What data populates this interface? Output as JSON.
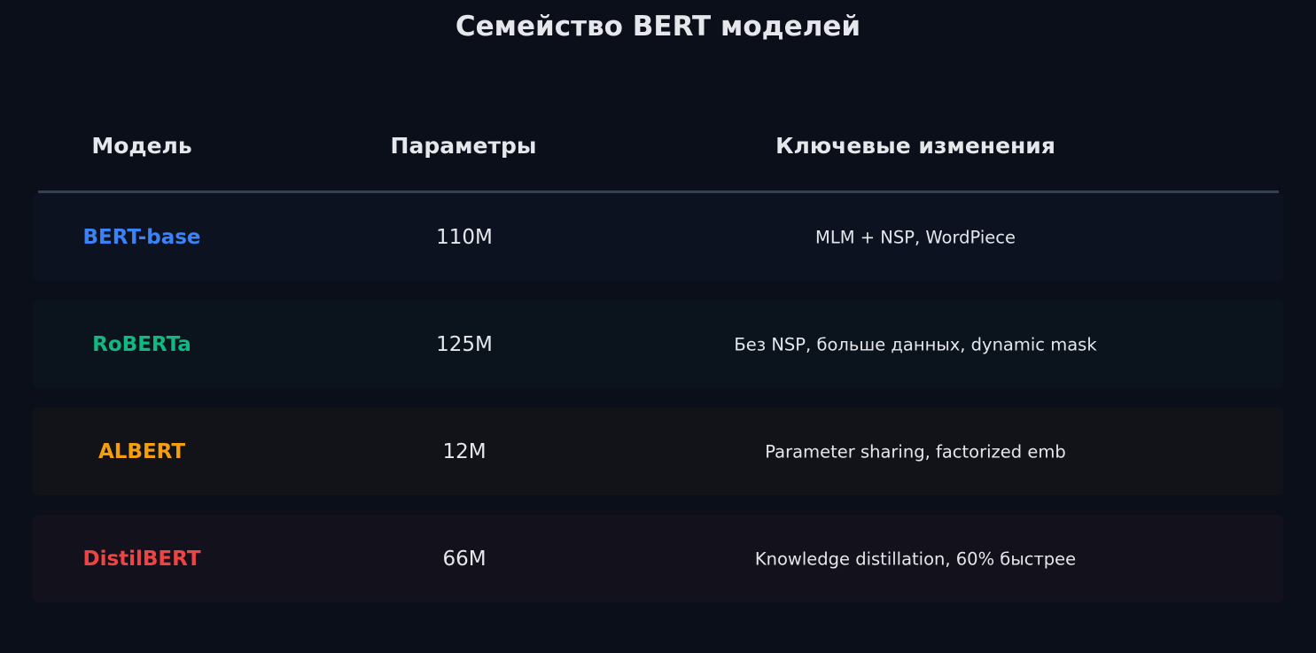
{
  "title": "Семейство BERT моделей",
  "headers": [
    "Модель",
    "Параметры",
    "Ключевые изменения"
  ],
  "rows": [
    {
      "model": "BERT-base",
      "params": "110M",
      "changes": "MLM + NSP, WordPiece",
      "color": "#3b82f6",
      "bg": "#0c1220"
    },
    {
      "model": "RoBERTa",
      "params": "125M",
      "changes": "Без NSP, больше данных, dynamic mask",
      "color": "#10b981",
      "bg": "#0b131c"
    },
    {
      "model": "ALBERT",
      "params": "12M",
      "changes": "Parameter sharing, factorized emb",
      "color": "#f59e0b",
      "bg": "#111318"
    },
    {
      "model": "DistilBERT",
      "params": "66M",
      "changes": "Knowledge distillation, 60% быстрее",
      "color": "#ef4444",
      "bg": "#12111c"
    }
  ]
}
